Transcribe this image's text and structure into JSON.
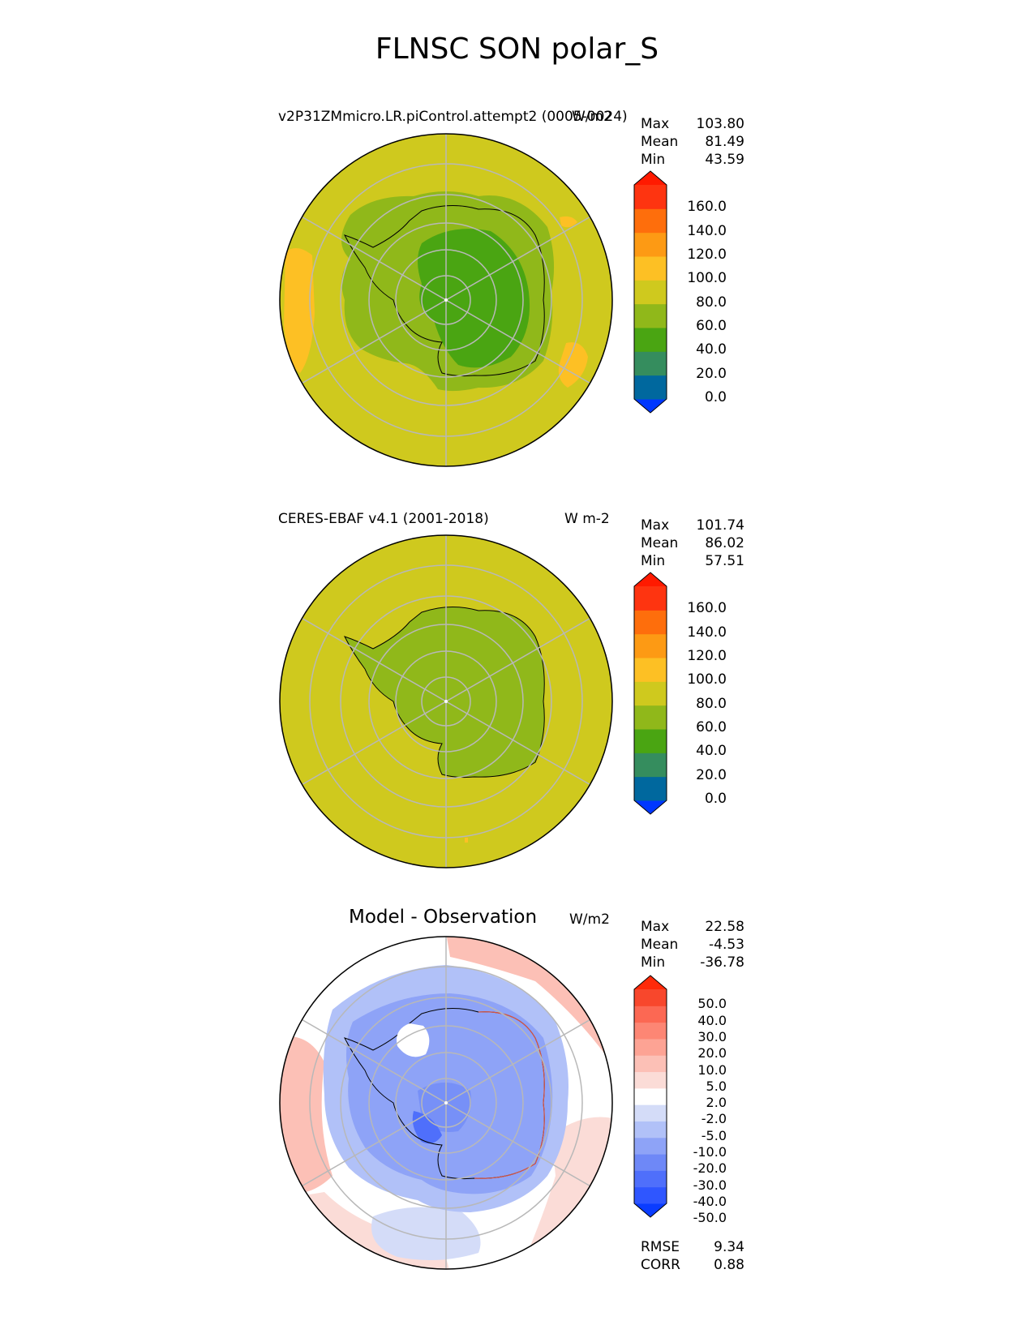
{
  "title": "FLNSC SON polar_S",
  "panels": [
    {
      "title": "v2P31ZMmicro.LR.piControl.attempt2 (0005-0024)",
      "units": "W/m2",
      "stats": [
        {
          "label": "Max",
          "value": "103.80"
        },
        {
          "label": "Mean",
          "value": "81.49"
        },
        {
          "label": "Min",
          "value": "43.59"
        }
      ],
      "colorbar": {
        "ticks": [
          "160.0",
          "140.0",
          "120.0",
          "100.0",
          "80.0",
          "60.0",
          "40.0",
          "20.0",
          "0.0"
        ],
        "colors": [
          "#0037ff",
          "#00689e",
          "#358d5e",
          "#4aa512",
          "#90b81a",
          "#cfc91e",
          "#fdc024",
          "#fd9a14",
          "#fe6e0c",
          "#fe3410",
          "#ff1a00"
        ]
      }
    },
    {
      "title": "CERES-EBAF v4.1 (2001-2018)",
      "units": "W m-2",
      "stats": [
        {
          "label": "Max",
          "value": "101.74"
        },
        {
          "label": "Mean",
          "value": "86.02"
        },
        {
          "label": "Min",
          "value": "57.51"
        }
      ],
      "colorbar": {
        "ticks": [
          "160.0",
          "140.0",
          "120.0",
          "100.0",
          "80.0",
          "60.0",
          "40.0",
          "20.0",
          "0.0"
        ],
        "colors": [
          "#0037ff",
          "#00689e",
          "#358d5e",
          "#4aa512",
          "#90b81a",
          "#cfc91e",
          "#fdc024",
          "#fd9a14",
          "#fe6e0c",
          "#fe3410",
          "#ff1a00"
        ]
      }
    },
    {
      "title": "Model - Observation",
      "units": "W/m2",
      "stats": [
        {
          "label": "Max",
          "value": "22.58"
        },
        {
          "label": "Mean",
          "value": "-4.53"
        },
        {
          "label": "Min",
          "value": "-36.78"
        }
      ],
      "extra_stats": [
        {
          "label": "RMSE",
          "value": "9.34"
        },
        {
          "label": "CORR",
          "value": "0.88"
        }
      ],
      "colorbar": {
        "ticks": [
          "50.0",
          "40.0",
          "30.0",
          "20.0",
          "10.0",
          "5.0",
          "2.0",
          "-2.0",
          "-5.0",
          "-10.0",
          "-20.0",
          "-30.0",
          "-40.0",
          "-50.0"
        ],
        "colors": [
          "#0a3cff",
          "#2f56ff",
          "#4f6ffb",
          "#6e88f7",
          "#8ea3f7",
          "#b1c1f8",
          "#d4dcf8",
          "#ffffff",
          "#fbdcd7",
          "#fcc0b6",
          "#fda394",
          "#fd8674",
          "#fc6853",
          "#f8472c",
          "#ff2a0a"
        ]
      }
    }
  ]
}
